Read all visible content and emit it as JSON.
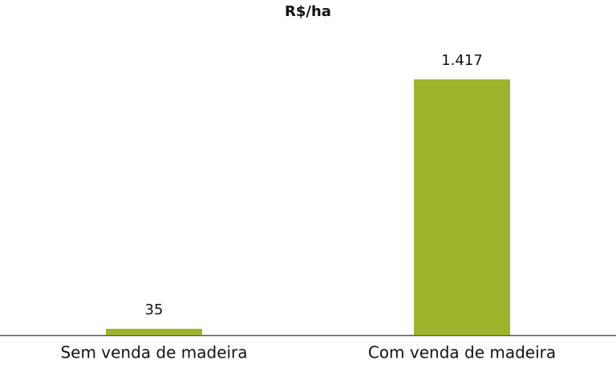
{
  "chart_data": {
    "type": "bar",
    "title": "R$/ha",
    "categories": [
      "Sem venda de madeira",
      "Com venda de madeira"
    ],
    "values": [
      35,
      1417
    ],
    "value_labels": [
      "35",
      "1.417"
    ],
    "color": "#9cb52b"
  }
}
